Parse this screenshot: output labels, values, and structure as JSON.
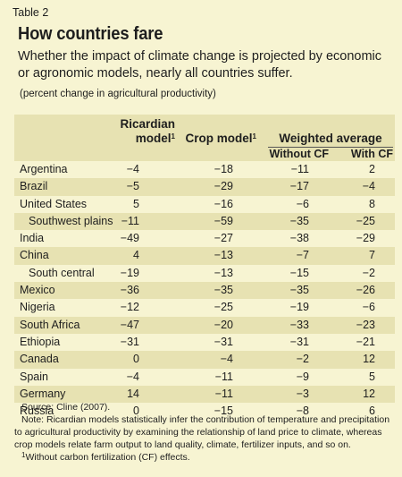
{
  "header": {
    "table_label": "Table 2",
    "title": "How countries fare",
    "subtitle": "Whether the impact of climate change is projected by economic or agronomic models, nearly all countries suffer.",
    "unit": "(percent change in agricultural productivity)"
  },
  "columns": {
    "ricardian": "Ricardian model",
    "crop": "Crop model",
    "footnote_mark": "1",
    "weighted": "Weighted average",
    "without_cf": "Without CF",
    "with_cf": "With CF"
  },
  "rows": [
    {
      "country": "Argentina",
      "ricardian": "−4",
      "crop": "−18",
      "without_cf": "−11",
      "with_cf": "2"
    },
    {
      "country": "Brazil",
      "ricardian": "−5",
      "crop": "−29",
      "without_cf": "−17",
      "with_cf": "−4"
    },
    {
      "country": "United States",
      "ricardian": "5",
      "crop": "−16",
      "without_cf": "−6",
      "with_cf": "8"
    },
    {
      "country": "Southwest plains",
      "ricardian": "−11",
      "crop": "−59",
      "without_cf": "−35",
      "with_cf": "−25"
    },
    {
      "country": "India",
      "ricardian": "−49",
      "crop": "−27",
      "without_cf": "−38",
      "with_cf": "−29"
    },
    {
      "country": "China",
      "ricardian": "4",
      "crop": "−13",
      "without_cf": "−7",
      "with_cf": "7"
    },
    {
      "country": "South central",
      "ricardian": "−19",
      "crop": "−13",
      "without_cf": "−15",
      "with_cf": "−2"
    },
    {
      "country": "Mexico",
      "ricardian": "−36",
      "crop": "−35",
      "without_cf": "−35",
      "with_cf": "−26"
    },
    {
      "country": "Nigeria",
      "ricardian": "−12",
      "crop": "−25",
      "without_cf": "−19",
      "with_cf": "−6"
    },
    {
      "country": "South Africa",
      "ricardian": "−47",
      "crop": "−20",
      "without_cf": "−33",
      "with_cf": "−23"
    },
    {
      "country": "Ethiopia",
      "ricardian": "−31",
      "crop": "−31",
      "without_cf": "−31",
      "with_cf": "−21"
    },
    {
      "country": "Canada",
      "ricardian": "0",
      "crop": "−4",
      "without_cf": "−2",
      "with_cf": "12"
    },
    {
      "country": "Spain",
      "ricardian": "−4",
      "crop": "−11",
      "without_cf": "−9",
      "with_cf": "5"
    },
    {
      "country": "Germany",
      "ricardian": "14",
      "crop": "−11",
      "without_cf": "−3",
      "with_cf": "12"
    },
    {
      "country": "Russia",
      "ricardian": "0",
      "crop": "−15",
      "without_cf": "−8",
      "with_cf": "6"
    }
  ],
  "notes": {
    "source": "Source: Cline (2007).",
    "note": "Note: Ricardian models statistically infer the contribution of temperature and precipitation to agricultural productivity by examining the relationship of land price to climate, whereas crop models relate farm output to land quality, climate, fertilizer inputs, and so on.",
    "footnote_mark": "1",
    "footnote": "Without carbon fertilization (CF) effects."
  },
  "colors": {
    "background": "#f7f4d2",
    "shade": "#e7e2b2",
    "text": "#1e1e1e"
  }
}
